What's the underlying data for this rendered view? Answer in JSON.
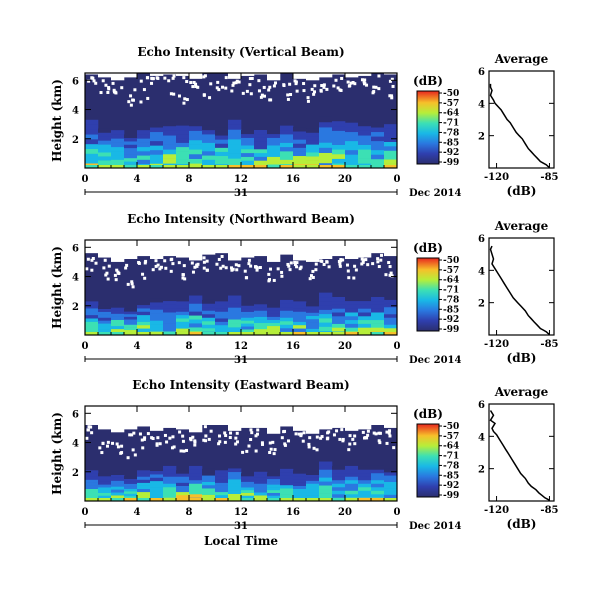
{
  "chart_data": [
    {
      "type": "heatmap",
      "title": "Echo Intensity (Vertical Beam)",
      "ylabel": "Height (km)",
      "x_ticks": [
        "0",
        "4",
        "8",
        "12",
        "16",
        "20",
        "0"
      ],
      "y_ticks": [
        "2",
        "4",
        "6"
      ],
      "ylim": [
        0,
        6.5
      ],
      "xlim_hours": [
        0,
        24
      ],
      "date_day": "31",
      "date_label": "Dec 2014",
      "colorbar": {
        "unit": "(dB)",
        "ticks": [
          "-50",
          "-57",
          "-64",
          "-71",
          "-78",
          "-85",
          "-92",
          "-99"
        ],
        "range": [
          -99,
          -50
        ]
      },
      "white_cover": [
        [
          6.4,
          2.6,
          3.0,
          5.9,
          3.3
        ],
        [
          6.2,
          1.8,
          2.6,
          4.8,
          2.7
        ],
        [
          6.0,
          4.8,
          5.2,
          4.8,
          2.9
        ],
        [
          6.2,
          1.6,
          2.2,
          3.8,
          2.3
        ],
        [
          6.5,
          5.1,
          5.5,
          4.6,
          2.9
        ],
        [
          6.3,
          2.7,
          3.1,
          5.5,
          3.1
        ],
        [
          6.4,
          3.6,
          4.0,
          5.0,
          3.2
        ],
        [
          6.3,
          4.1,
          4.5,
          4.1,
          2.9
        ],
        [
          6.1,
          2.9,
          3.3,
          5.5,
          3.2
        ],
        [
          6.5,
          4.7,
          5.1,
          4.9,
          2.9
        ],
        [
          6.5,
          4.6,
          5.0,
          5.4,
          2.8
        ],
        [
          6.1,
          3.4,
          3.8,
          5.3,
          3.3
        ],
        [
          6.3,
          1.3,
          1.7,
          4.6,
          2.6
        ],
        [
          6.4,
          4.0,
          4.4,
          4.6,
          2.6
        ],
        [
          6.0,
          2.0,
          2.4,
          4.5,
          2.6
        ],
        [
          6.5,
          1.8,
          2.2,
          4.7,
          2.9
        ],
        [
          6.1,
          4.6,
          5.0,
          5.3,
          2.8
        ],
        [
          6.0,
          2.5,
          2.9,
          4.6,
          2.7
        ],
        [
          6.2,
          3.7,
          4.1,
          5.3,
          3.5
        ],
        [
          6.4,
          3.0,
          3.4,
          5.2,
          3.2
        ],
        [
          6.2,
          2.4,
          2.8,
          4.6,
          3.1
        ],
        [
          6.3,
          3.4,
          3.8,
          5.6,
          3.2
        ],
        [
          6.6,
          3.9,
          4.3,
          5.0,
          3.1
        ],
        [
          6.4,
          4.1,
          4.5,
          4.7,
          3.0
        ]
      ],
      "average_profile": {
        "title": "Average",
        "xlabel": "(dB)",
        "x_ticks": [
          "-120",
          "-85"
        ],
        "y_ticks": [
          "2",
          "4",
          "6"
        ],
        "xlim": [
          -125,
          -82
        ],
        "ylim": [
          0,
          6
        ],
        "points": [
          [
            -124,
            5.2
          ],
          [
            -124,
            5.0
          ],
          [
            -123,
            4.8
          ],
          [
            -124,
            4.5
          ],
          [
            -122,
            4.2
          ],
          [
            -121,
            4.0
          ],
          [
            -119,
            3.8
          ],
          [
            -117,
            3.6
          ],
          [
            -115,
            3.3
          ],
          [
            -113,
            3.0
          ],
          [
            -111,
            2.8
          ],
          [
            -109,
            2.5
          ],
          [
            -107,
            2.2
          ],
          [
            -105,
            2.0
          ],
          [
            -103,
            1.8
          ],
          [
            -101,
            1.5
          ],
          [
            -99,
            1.2
          ],
          [
            -97,
            1.0
          ],
          [
            -95,
            0.8
          ],
          [
            -93,
            0.6
          ],
          [
            -91,
            0.4
          ],
          [
            -89,
            0.3
          ],
          [
            -87,
            0.2
          ],
          [
            -86,
            0.1
          ],
          [
            -85,
            0.05
          ]
        ]
      }
    },
    {
      "type": "heatmap",
      "title": "Echo Intensity (Northward Beam)",
      "ylabel": "Height (km)",
      "x_ticks": [
        "0",
        "4",
        "8",
        "12",
        "16",
        "20",
        "0"
      ],
      "y_ticks": [
        "2",
        "4",
        "6"
      ],
      "ylim": [
        0,
        6.5
      ],
      "xlim_hours": [
        0,
        24
      ],
      "date_day": "31",
      "date_label": "Dec 2014",
      "colorbar": {
        "unit": "(dB)",
        "ticks": [
          "-50",
          "-57",
          "-64",
          "-71",
          "-78",
          "-85",
          "-92",
          "-99"
        ],
        "range": [
          -99,
          -50
        ]
      },
      "white_cover": [
        [
          5.6,
          2.0,
          2.7,
          4.2,
          2.3
        ],
        [
          5.3,
          1.6,
          2.2,
          3.9,
          2.0
        ],
        [
          5.0,
          3.2,
          3.7,
          3.8,
          2.1
        ],
        [
          5.2,
          1.7,
          2.1,
          3.1,
          1.8
        ],
        [
          5.4,
          3.6,
          4.1,
          3.8,
          2.3
        ],
        [
          5.2,
          1.9,
          2.5,
          4.5,
          2.5
        ],
        [
          5.4,
          2.7,
          3.3,
          4.1,
          2.6
        ],
        [
          5.3,
          3.0,
          3.6,
          3.5,
          2.3
        ],
        [
          5.1,
          2.0,
          2.7,
          4.4,
          2.7
        ],
        [
          5.5,
          3.5,
          4.0,
          4.1,
          2.4
        ],
        [
          5.6,
          3.6,
          4.1,
          4.5,
          2.3
        ],
        [
          5.1,
          2.3,
          2.9,
          4.5,
          2.7
        ],
        [
          5.3,
          1.4,
          1.9,
          3.8,
          2.0
        ],
        [
          5.4,
          3.2,
          3.7,
          4.0,
          2.1
        ],
        [
          5.0,
          1.5,
          2.0,
          3.8,
          2.1
        ],
        [
          5.5,
          1.8,
          2.2,
          4.1,
          2.4
        ],
        [
          5.1,
          3.6,
          4.0,
          4.6,
          2.3
        ],
        [
          5.0,
          1.7,
          2.2,
          3.9,
          2.2
        ],
        [
          5.2,
          2.8,
          3.3,
          4.7,
          2.9
        ],
        [
          5.4,
          2.1,
          2.6,
          4.5,
          2.6
        ],
        [
          5.2,
          1.6,
          2.1,
          4.0,
          2.6
        ],
        [
          5.3,
          2.6,
          3.1,
          4.9,
          2.6
        ],
        [
          5.6,
          3.1,
          3.6,
          4.4,
          2.6
        ],
        [
          5.4,
          3.4,
          3.9,
          4.1,
          2.4
        ]
      ],
      "average_profile": {
        "title": "Average",
        "xlabel": "(dB)",
        "x_ticks": [
          "-120",
          "-85"
        ],
        "y_ticks": [
          "2",
          "4",
          "6"
        ],
        "xlim": [
          -125,
          -82
        ],
        "ylim": [
          0,
          6
        ],
        "points": [
          [
            -123,
            5.5
          ],
          [
            -124,
            5.3
          ],
          [
            -123,
            5.0
          ],
          [
            -122,
            4.7
          ],
          [
            -123,
            4.4
          ],
          [
            -121,
            4.1
          ],
          [
            -119,
            3.8
          ],
          [
            -117,
            3.5
          ],
          [
            -115,
            3.2
          ],
          [
            -113,
            2.9
          ],
          [
            -111,
            2.6
          ],
          [
            -109,
            2.3
          ],
          [
            -106,
            2.0
          ],
          [
            -104,
            1.8
          ],
          [
            -101,
            1.5
          ],
          [
            -99,
            1.2
          ],
          [
            -97,
            1.0
          ],
          [
            -95,
            0.8
          ],
          [
            -93,
            0.6
          ],
          [
            -91,
            0.4
          ],
          [
            -89,
            0.3
          ],
          [
            -87,
            0.2
          ],
          [
            -86,
            0.1
          ],
          [
            -85,
            0.05
          ]
        ]
      }
    },
    {
      "type": "heatmap",
      "title": "Echo Intensity (Eastward Beam)",
      "ylabel": "Height (km)",
      "x_ticks": [
        "0",
        "4",
        "8",
        "12",
        "16",
        "20",
        "0"
      ],
      "y_ticks": [
        "2",
        "4",
        "6"
      ],
      "ylim": [
        0,
        6.5
      ],
      "xlim_hours": [
        0,
        24
      ],
      "date_day": "31",
      "date_label": "Dec 2014",
      "xlabel": "Local Time",
      "colorbar": {
        "unit": "(dB)",
        "ticks": [
          "-50",
          "-57",
          "-64",
          "-71",
          "-78",
          "-85",
          "-92",
          "-99"
        ],
        "range": [
          -99,
          -50
        ]
      },
      "white_cover": [
        [
          5.2,
          2.1,
          2.8,
          3.6,
          2.1
        ],
        [
          4.9,
          1.5,
          2.1,
          3.2,
          1.9
        ],
        [
          4.7,
          2.7,
          3.2,
          3.2,
          2.0
        ],
        [
          4.9,
          1.3,
          1.8,
          2.6,
          1.7
        ],
        [
          5.1,
          3.0,
          3.5,
          3.1,
          2.1
        ],
        [
          4.8,
          1.8,
          2.3,
          3.9,
          2.3
        ],
        [
          5.0,
          2.4,
          2.9,
          3.6,
          2.4
        ],
        [
          4.9,
          2.6,
          3.2,
          3.0,
          2.1
        ],
        [
          4.7,
          1.9,
          2.5,
          3.9,
          2.4
        ],
        [
          5.2,
          3.0,
          3.5,
          3.6,
          2.2
        ],
        [
          5.2,
          3.2,
          3.7,
          4.0,
          2.1
        ],
        [
          4.8,
          2.0,
          2.6,
          3.9,
          2.5
        ],
        [
          5.0,
          1.3,
          1.8,
          3.3,
          1.9
        ],
        [
          5.0,
          2.8,
          3.3,
          3.5,
          2.0
        ],
        [
          4.6,
          1.4,
          1.9,
          3.3,
          1.9
        ],
        [
          5.1,
          1.6,
          2.1,
          3.6,
          2.2
        ],
        [
          4.8,
          3.2,
          3.7,
          4.1,
          2.1
        ],
        [
          4.6,
          1.6,
          2.1,
          3.4,
          2.0
        ],
        [
          4.9,
          2.5,
          3.0,
          4.2,
          2.7
        ],
        [
          5.0,
          1.9,
          2.4,
          4.0,
          2.4
        ],
        [
          4.8,
          1.5,
          2.0,
          3.5,
          2.4
        ],
        [
          4.9,
          2.3,
          2.8,
          4.3,
          2.4
        ],
        [
          5.2,
          2.8,
          3.3,
          3.9,
          2.4
        ],
        [
          5.0,
          3.0,
          3.5,
          3.6,
          2.2
        ]
      ],
      "average_profile": {
        "title": "Average",
        "xlabel": "(dB)",
        "x_ticks": [
          "-120",
          "-85"
        ],
        "y_ticks": [
          "2",
          "4",
          "6"
        ],
        "xlim": [
          -125,
          -82
        ],
        "ylim": [
          0,
          6
        ],
        "points": [
          [
            -124,
            5.6
          ],
          [
            -122,
            5.3
          ],
          [
            -124,
            5.0
          ],
          [
            -121,
            4.8
          ],
          [
            -123,
            4.5
          ],
          [
            -122,
            4.3
          ],
          [
            -120,
            4.1
          ],
          [
            -118,
            3.8
          ],
          [
            -116,
            3.5
          ],
          [
            -114,
            3.2
          ],
          [
            -112,
            2.9
          ],
          [
            -110,
            2.6
          ],
          [
            -108,
            2.3
          ],
          [
            -106,
            2.0
          ],
          [
            -104,
            1.7
          ],
          [
            -101,
            1.4
          ],
          [
            -99,
            1.1
          ],
          [
            -97,
            0.9
          ],
          [
            -94,
            0.7
          ],
          [
            -92,
            0.5
          ],
          [
            -90,
            0.35
          ],
          [
            -88,
            0.2
          ],
          [
            -86,
            0.1
          ],
          [
            -85,
            0.05
          ]
        ]
      }
    }
  ]
}
